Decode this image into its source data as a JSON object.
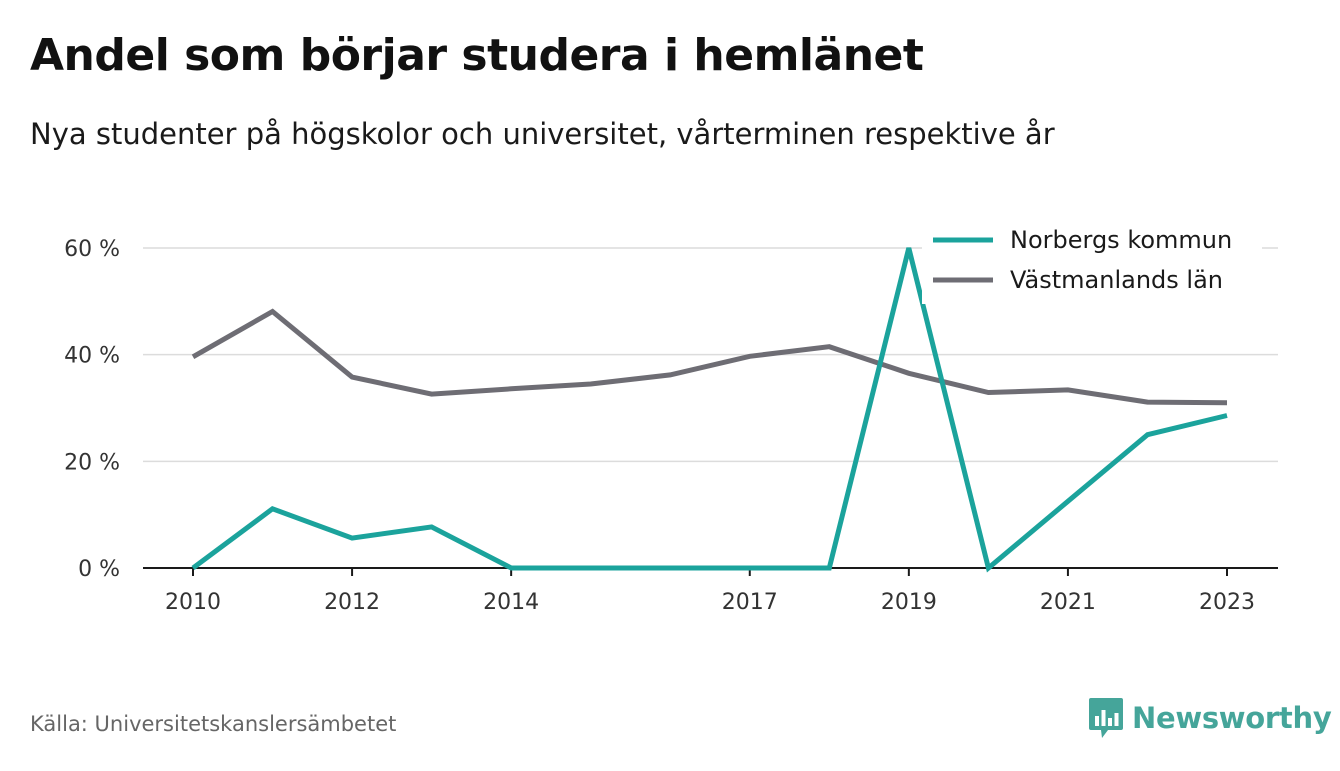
{
  "header": {
    "title": "Andel som börjar studera i hemlänet",
    "subtitle": "Nya studenter på högskolor och universitet, vårterminen respektive år"
  },
  "footer": {
    "source": "Källa: Universitetskanslersämbetet",
    "brand": "Newsworthy",
    "brand_icon": "bar-chart-bubble-icon"
  },
  "chart_data": {
    "type": "line",
    "x": [
      2010,
      2011,
      2012,
      2013,
      2014,
      2015,
      2016,
      2017,
      2018,
      2019,
      2020,
      2021,
      2022,
      2023
    ],
    "x_ticks": [
      2010,
      2012,
      2014,
      2017,
      2019,
      2021,
      2023
    ],
    "y_ticks": [
      0,
      20,
      40,
      60
    ],
    "y_tick_labels": [
      "0 %",
      "20 %",
      "40 %",
      "60 %"
    ],
    "xlim": [
      2010,
      2023
    ],
    "ylim": [
      0,
      60
    ],
    "grid": true,
    "legend_position": "top-right",
    "series": [
      {
        "name": "Norbergs kommun",
        "color": "#1ba39c",
        "values": [
          0,
          11.1,
          5.6,
          7.7,
          0,
          0,
          0,
          0,
          0,
          60,
          0,
          12.5,
          25,
          28.6
        ]
      },
      {
        "name": "Västmanlands län",
        "color": "#6e6d74",
        "values": [
          39.6,
          48.1,
          35.8,
          32.6,
          33.6,
          34.5,
          36.2,
          39.7,
          41.5,
          36.5,
          32.9,
          33.4,
          31.1,
          31.0
        ]
      }
    ]
  }
}
